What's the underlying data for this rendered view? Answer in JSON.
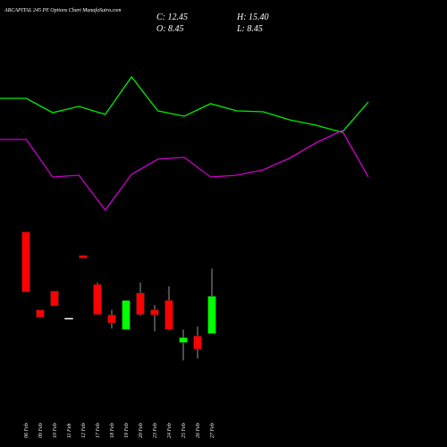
{
  "title": "ABCAPITAL 245 PE Options Chart MunafaSutra.com",
  "readout": [
    "C: 12.45",
    "H: 15.40",
    "O: 8.45",
    "L: 8.45"
  ],
  "chart_data": [
    {
      "type": "line",
      "x": [
        0,
        1,
        2,
        3,
        4,
        5,
        6,
        7,
        8,
        9,
        10,
        11,
        12,
        13,
        14
      ],
      "xlim": [
        0,
        14
      ],
      "ylim": [
        0,
        100
      ],
      "series": [
        {
          "color": "#00ee00",
          "values": [
            56,
            56,
            49.6,
            52.4,
            48.8,
            65.6,
            50.4,
            48,
            53.6,
            50.4,
            50,
            46.4,
            44,
            40.8,
            54.4
          ]
        },
        {
          "color": "#cc00cc",
          "values": [
            37.6,
            37.6,
            20.8,
            21.6,
            6,
            22,
            28.8,
            29.6,
            20.8,
            21.6,
            24,
            29.2,
            36,
            41.6,
            20.8
          ]
        }
      ]
    },
    {
      "type": "candlestick",
      "categories": [
        "06 Feb",
        "09 Feb",
        "10 Feb",
        "11 Feb",
        "12 Feb",
        "17 Feb",
        "18 Feb",
        "19 Feb",
        "20 Feb",
        "23 Feb",
        "24 Feb",
        "25 Feb",
        "26 Feb",
        "27 Feb"
      ],
      "open": [
        19.3,
        11.0,
        13.0,
        10.1,
        16.8,
        13.7,
        10.45,
        8.9,
        12.8,
        11.0,
        12.0,
        7.5,
        8.2,
        8.45
      ],
      "high": [
        19.3,
        11.0,
        13.0,
        10.1,
        16.8,
        13.9,
        11.0,
        12.0,
        13.9,
        11.5,
        13.5,
        8.9,
        9.2,
        15.4
      ],
      "low": [
        12.9,
        10.2,
        11.4,
        10.1,
        16.5,
        10.45,
        9.0,
        8.9,
        10.35,
        8.7,
        8.8,
        5.6,
        5.8,
        8.45
      ],
      "close": [
        12.9,
        10.2,
        11.4,
        10.1,
        16.5,
        10.5,
        9.6,
        12.0,
        10.5,
        10.45,
        8.9,
        8.05,
        6.8,
        12.45
      ],
      "ylim": [
        4,
        20.2
      ],
      "up_color": "#00ff00",
      "down_color": "#ff0000",
      "flat_color": "#ffffff"
    }
  ]
}
